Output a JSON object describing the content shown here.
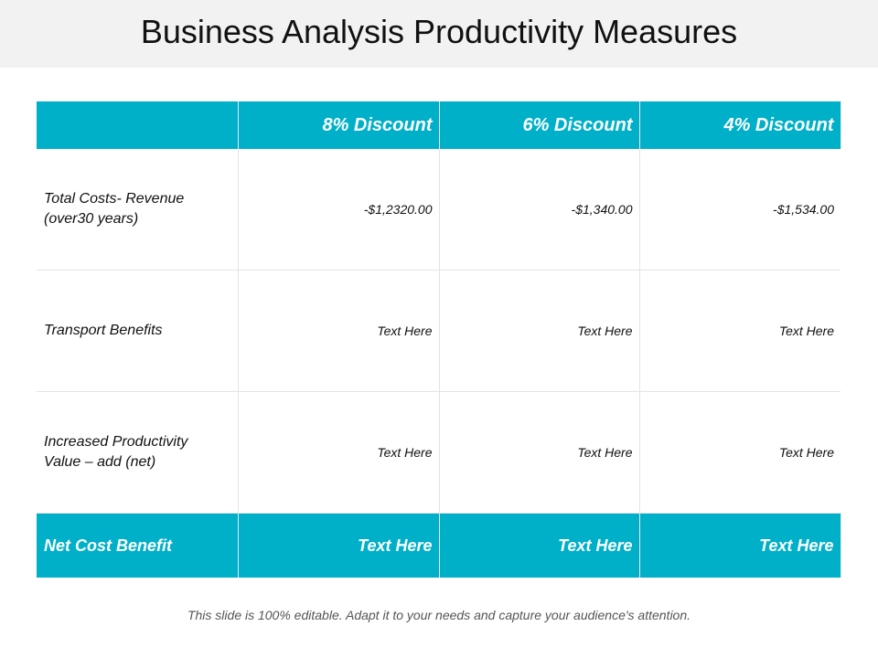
{
  "slide": {
    "title": "Business Analysis Productivity Measures",
    "footnote": "This slide is 100% editable. Adapt it to your needs and capture your audience's attention."
  },
  "table": {
    "header": [
      "",
      "8% Discount",
      "6% Discount",
      "4% Discount"
    ],
    "rows": [
      {
        "label_lines": [
          "Total Costs- Revenue",
          "(over30 years)"
        ],
        "cells": [
          "-$1,2320.00",
          "-$1,340.00",
          "-$1,534.00"
        ]
      },
      {
        "label_lines": [
          "Transport Benefits"
        ],
        "cells": [
          "Text Here",
          "Text Here",
          "Text Here"
        ]
      },
      {
        "label_lines": [
          "Increased Productivity",
          "Value – add (net)"
        ],
        "cells": [
          "Text Here",
          "Text Here",
          "Text Here"
        ]
      }
    ],
    "footer": {
      "label": "Net Cost Benefit",
      "cells": [
        "Text Here",
        "Text Here",
        "Text Here"
      ]
    }
  },
  "colors": {
    "accent": "#00b0c8",
    "title_bar": "#f2f2f2",
    "text": "#111111",
    "footnote_text": "#555555"
  }
}
